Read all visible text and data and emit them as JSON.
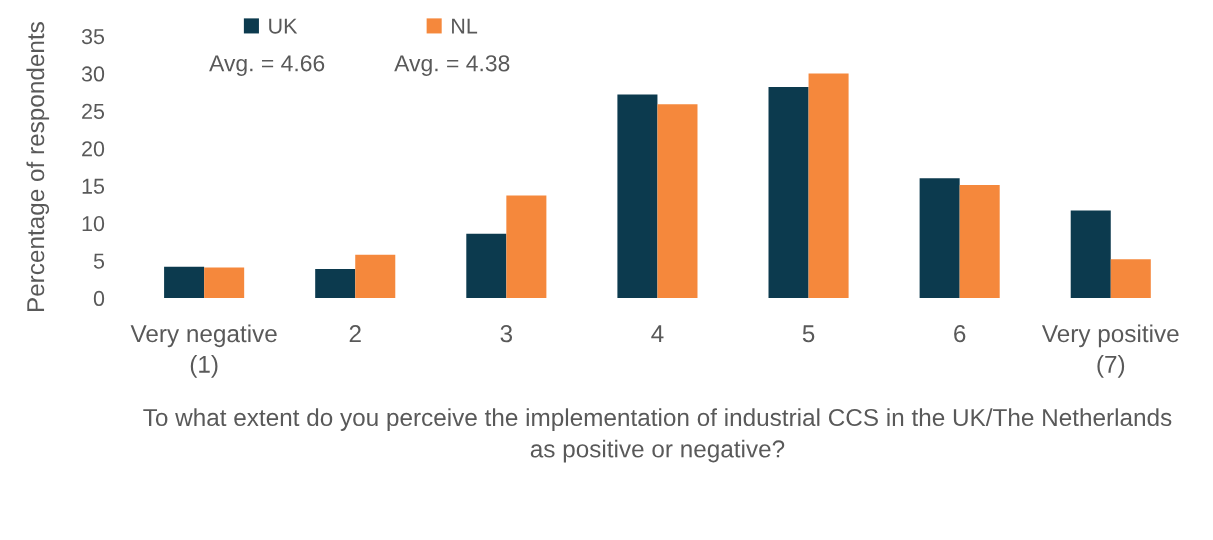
{
  "chart_data": {
    "type": "bar",
    "ylabel": "Percentage of respondents",
    "xlabel": "To what extent do you perceive the implementation of industrial CCS in the UK/The Netherlands\nas positive or negative?",
    "categories": [
      "Very negative\n(1)",
      "2",
      "3",
      "4",
      "5",
      "6",
      "Very positive\n(7)"
    ],
    "series": [
      {
        "name": "UK",
        "color": "#0c3a4e",
        "values": [
          4.2,
          3.9,
          8.6,
          27.2,
          28.2,
          16.0,
          11.7
        ]
      },
      {
        "name": "NL",
        "color": "#f5883c",
        "values": [
          4.1,
          5.8,
          13.7,
          25.9,
          30.0,
          15.1,
          5.2
        ]
      }
    ],
    "ylim": [
      0,
      35
    ],
    "yticks": [
      0,
      5,
      10,
      15,
      20,
      25,
      30,
      35
    ],
    "grid": false,
    "legend": "top left",
    "annotations": [
      "Avg. = 4.66",
      "Avg. = 4.38"
    ]
  }
}
